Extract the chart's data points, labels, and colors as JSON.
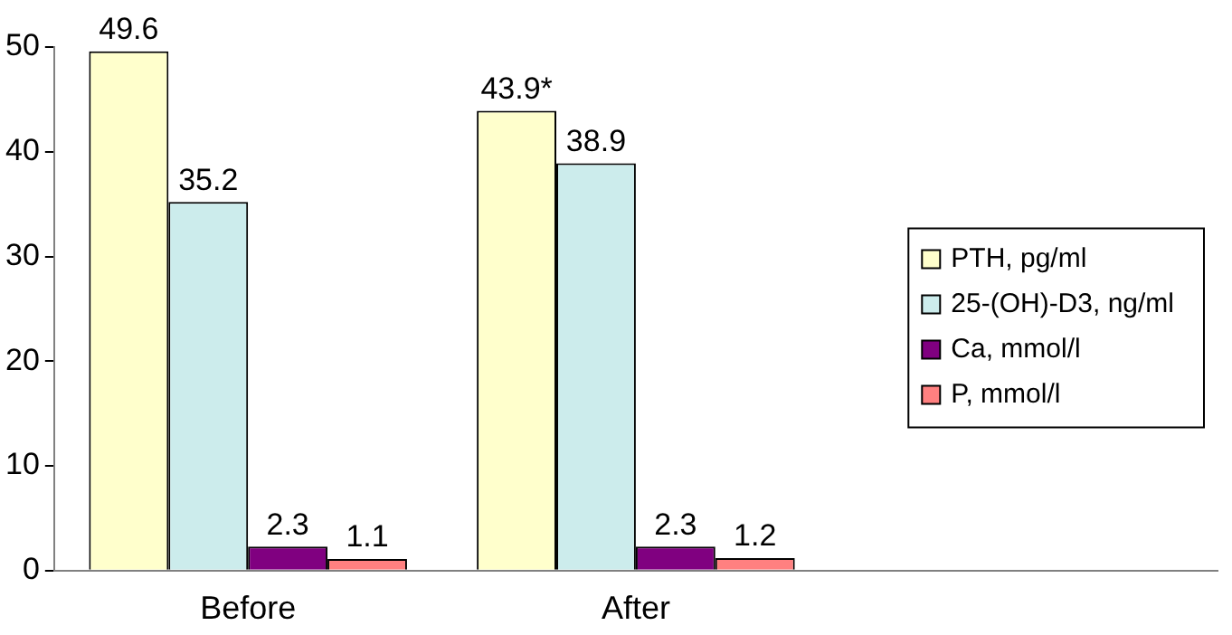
{
  "chart_data": {
    "type": "bar",
    "categories": [
      "Before",
      "After",
      null
    ],
    "series": [
      {
        "name": "PTH, pg/ml",
        "color": "#ffffcc",
        "values": [
          49.6,
          43.9,
          null
        ],
        "value_labels": [
          "49.6",
          "43.9*",
          null
        ]
      },
      {
        "name": "25-(OH)-D3, ng/ml",
        "color": "#ccecec",
        "values": [
          35.2,
          38.9,
          null
        ],
        "value_labels": [
          "35.2",
          "38.9",
          null
        ]
      },
      {
        "name": "Ca, mmol/l",
        "color": "#800080",
        "values": [
          2.3,
          2.3,
          null
        ],
        "value_labels": [
          "2.3",
          "2.3",
          null
        ]
      },
      {
        "name": "P, mmol/l",
        "color": "#ff8080",
        "values": [
          1.1,
          1.2,
          null
        ],
        "value_labels": [
          "1.1",
          "1.2",
          null
        ]
      }
    ],
    "ylim": [
      0,
      50
    ],
    "yticks": [
      0,
      10,
      20,
      30,
      40,
      50
    ],
    "grid": false,
    "legend": "right"
  }
}
